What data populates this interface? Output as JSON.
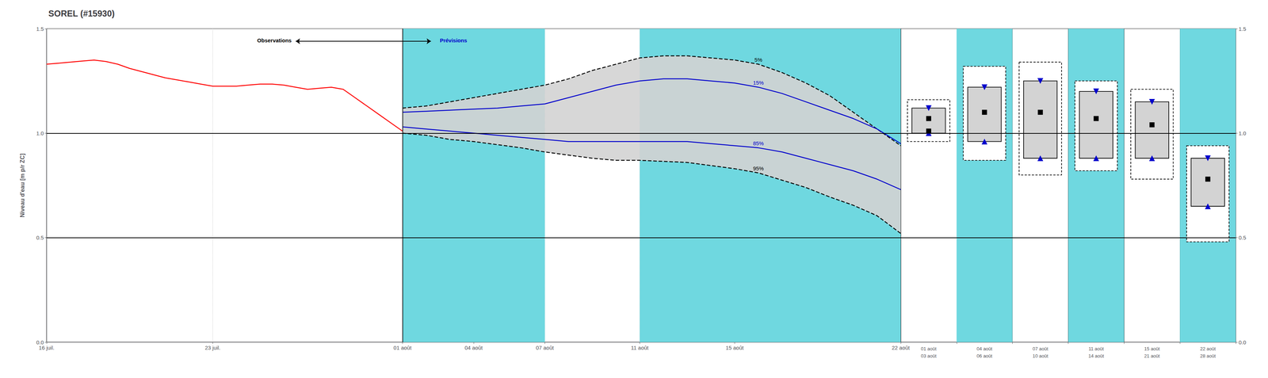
{
  "chart_data": [
    {
      "type": "line",
      "title": "SOREL (#15930)",
      "y_label": "Niveau d'eau [m p/r ZC]",
      "xlim": [
        -15,
        21
      ],
      "xticks": [
        {
          "value": -15,
          "label": "16 juil."
        },
        {
          "value": -8,
          "label": "23 juil."
        },
        {
          "value": 0,
          "label": "01 août"
        },
        {
          "value": 3,
          "label": "04 août"
        },
        {
          "value": 6,
          "label": "07 août"
        },
        {
          "value": 10,
          "label": "11 août"
        },
        {
          "value": 14,
          "label": "15 août"
        },
        {
          "value": 21,
          "label": "22 août"
        }
      ],
      "ylim": [
        0.0,
        1.5
      ],
      "yticks": [
        {
          "value": 0.0,
          "label": "0.0"
        },
        0.5,
        {
          "value": 1.0,
          "label": "1.0"
        },
        1.5
      ],
      "grid": true,
      "series": [
        {
          "type": "span",
          "x_ranges": [
            [
              0,
              6
            ],
            [
              10,
              21
            ]
          ],
          "color": "#6FD8E0"
        },
        {
          "type": "area",
          "x": [
            0,
            1,
            2,
            3,
            4,
            5,
            6,
            7,
            8,
            9,
            10,
            11,
            12,
            13,
            14,
            15,
            16,
            17,
            18,
            19,
            20,
            21
          ],
          "low": [
            1.0,
            0.99,
            0.97,
            0.96,
            0.945,
            0.93,
            0.91,
            0.895,
            0.88,
            0.87,
            0.87,
            0.865,
            0.86,
            0.845,
            0.83,
            0.81,
            0.775,
            0.74,
            0.695,
            0.655,
            0.605,
            0.52
          ],
          "high": [
            1.12,
            1.13,
            1.15,
            1.17,
            1.19,
            1.21,
            1.23,
            1.26,
            1.3,
            1.33,
            1.36,
            1.37,
            1.37,
            1.36,
            1.35,
            1.33,
            1.29,
            1.24,
            1.18,
            1.1,
            1.02,
            0.94
          ],
          "color": "#D3D3D3"
        },
        {
          "type": "line",
          "name": "5%",
          "color": "#000000",
          "line_style": "dashed",
          "x": [
            0,
            1,
            2,
            3,
            4,
            5,
            6,
            7,
            8,
            9,
            10,
            11,
            12,
            13,
            14,
            15,
            16,
            17,
            18,
            19,
            20,
            21
          ],
          "values": [
            1.12,
            1.13,
            1.15,
            1.17,
            1.19,
            1.21,
            1.23,
            1.26,
            1.3,
            1.33,
            1.36,
            1.37,
            1.37,
            1.36,
            1.35,
            1.33,
            1.29,
            1.24,
            1.18,
            1.1,
            1.02,
            0.94
          ]
        },
        {
          "type": "line",
          "name": "95%",
          "color": "#000000",
          "line_style": "dashed",
          "x": [
            0,
            1,
            2,
            3,
            4,
            5,
            6,
            7,
            8,
            9,
            10,
            11,
            12,
            13,
            14,
            15,
            16,
            17,
            18,
            19,
            20,
            21
          ],
          "values": [
            1.0,
            0.99,
            0.97,
            0.96,
            0.945,
            0.93,
            0.91,
            0.895,
            0.88,
            0.87,
            0.87,
            0.865,
            0.86,
            0.845,
            0.83,
            0.81,
            0.775,
            0.74,
            0.695,
            0.655,
            0.605,
            0.52
          ]
        },
        {
          "type": "line",
          "name": "15%",
          "color": "#0000CC",
          "line_style": "solid",
          "x": [
            0,
            1,
            2,
            3,
            4,
            5,
            6,
            7,
            8,
            9,
            10,
            11,
            12,
            13,
            14,
            15,
            16,
            17,
            18,
            19,
            20,
            21
          ],
          "values": [
            1.1,
            1.105,
            1.11,
            1.115,
            1.12,
            1.13,
            1.14,
            1.17,
            1.2,
            1.23,
            1.25,
            1.26,
            1.26,
            1.25,
            1.24,
            1.22,
            1.19,
            1.15,
            1.11,
            1.07,
            1.02,
            0.95
          ]
        },
        {
          "type": "line",
          "name": "85%",
          "color": "#0000CC",
          "line_style": "solid",
          "x": [
            0,
            1,
            2,
            3,
            4,
            5,
            6,
            7,
            8,
            9,
            10,
            11,
            12,
            13,
            14,
            15,
            16,
            17,
            18,
            19,
            20,
            21
          ],
          "values": [
            1.03,
            1.02,
            1.01,
            1.0,
            0.99,
            0.98,
            0.97,
            0.96,
            0.96,
            0.96,
            0.96,
            0.96,
            0.96,
            0.95,
            0.94,
            0.93,
            0.91,
            0.88,
            0.85,
            0.82,
            0.78,
            0.73
          ]
        },
        {
          "type": "line",
          "color": "#FF0000",
          "line_style": "solid",
          "x": [
            -15.0,
            -14.5,
            -14.0,
            -13.5,
            -13.0,
            -12.5,
            -12.0,
            -11.5,
            -11.0,
            -10.5,
            -10.0,
            -9.5,
            -9.0,
            -8.5,
            -8.0,
            -7.5,
            -7.0,
            -6.5,
            -6.0,
            -5.5,
            -5.0,
            -4.5,
            -4.0,
            -3.5,
            -3.0,
            -2.5,
            -2.0,
            -1.5,
            -1.0,
            -0.5,
            0.0
          ],
          "values": [
            1.33,
            1.335,
            1.34,
            1.345,
            1.35,
            1.343,
            1.33,
            1.31,
            1.295,
            1.28,
            1.265,
            1.255,
            1.245,
            1.235,
            1.225,
            1.225,
            1.225,
            1.23,
            1.235,
            1.235,
            1.23,
            1.22,
            1.21,
            1.215,
            1.22,
            1.21,
            1.17,
            1.13,
            1.09,
            1.05,
            1.01
          ]
        }
      ],
      "hlines": [
        0.5,
        1.0
      ],
      "vlines": [
        0
      ],
      "arrows": [
        {
          "x": [
            -4.5,
            1.2
          ],
          "y": 1.44
        }
      ],
      "annotations": [
        {
          "text": "Observations",
          "x": -4.6,
          "y": 1.445
        },
        {
          "text": "Prévisions",
          "x": 1.5,
          "y": 1.445,
          "color": "#0000CC"
        }
      ]
    },
    {
      "type": "box",
      "categories": [
        "01 août",
        "04 août",
        "07 août",
        "11 août",
        "15 août",
        "22 août"
      ],
      "category_sublabels": [
        "03 août",
        "06 août",
        "10 août",
        "14 août",
        "21 août",
        "28 août"
      ],
      "ylim": [
        0.0,
        1.5
      ],
      "yticks": [
        {
          "value": 0.0,
          "label": "0.0"
        },
        0.5,
        {
          "value": 1.0,
          "label": "1.0"
        },
        1.5
      ],
      "grid": true,
      "hlines": [
        0.5,
        1.0
      ],
      "shading": {
        "columns": [
          false,
          true,
          false,
          true,
          false,
          true
        ],
        "color": "#6FD8E0"
      },
      "color": "#0000CC",
      "p5": [
        1.16,
        1.32,
        1.34,
        1.25,
        1.21,
        0.94
      ],
      "p15": [
        1.12,
        1.22,
        1.25,
        1.2,
        1.15,
        0.88
      ],
      "p50": [
        1.07,
        1.1,
        1.1,
        1.07,
        1.04,
        0.78
      ],
      "p85": [
        1.0,
        0.96,
        0.88,
        0.88,
        0.88,
        0.65
      ],
      "p95": [
        0.96,
        0.87,
        0.8,
        0.82,
        0.78,
        0.48
      ],
      "obs": [
        1.01,
        null,
        null,
        null,
        null,
        null
      ]
    }
  ]
}
